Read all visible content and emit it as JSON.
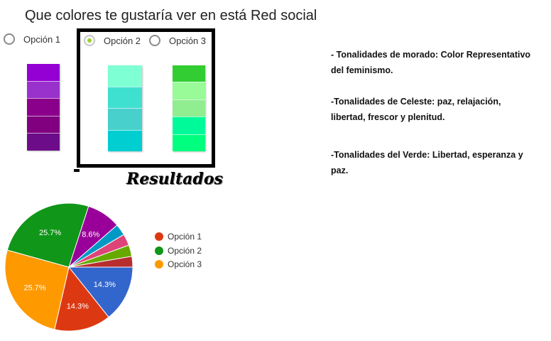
{
  "question": "Que colores te gustaría ver en está Red social",
  "options": [
    {
      "label": "Opción 1",
      "checked": false
    },
    {
      "label": "Opción 2",
      "checked": true
    },
    {
      "label": "Opción 3",
      "checked": false
    }
  ],
  "swatches": [
    {
      "name": "morado",
      "colors": [
        "#9400d3",
        "#9932cc",
        "#8b008b",
        "#800080",
        "#6c0c89"
      ]
    },
    {
      "name": "celeste",
      "colors": [
        "#7fffd4",
        "#40e0d0",
        "#48d1cc",
        "#00ced1"
      ]
    },
    {
      "name": "verde",
      "colors": [
        "#32cd32",
        "#98fb98",
        "#90ee90",
        "#00fa9a",
        "#00ff7f"
      ]
    }
  ],
  "results_title": "Resultados",
  "descriptions": [
    {
      "line1": "- Tonalidades de morado: Color Representativo",
      "line2": "del feminismo."
    },
    {
      "line1": "-Tonalidades de Celeste: paz, relajación,",
      "line2": "libertad, frescor y plenitud."
    },
    {
      "line1": "-Tonalidades del Verde: Libertad, esperanza y",
      "line2": "paz."
    }
  ],
  "chart_data": {
    "type": "pie",
    "slices": [
      {
        "label": "",
        "value": 14.3,
        "color": "#3366cc",
        "display": "14.3%"
      },
      {
        "label": "",
        "value": 14.3,
        "color": "#dc3912",
        "display": "14.3%"
      },
      {
        "label": "",
        "value": 25.7,
        "color": "#ff9900",
        "display": "25.7%"
      },
      {
        "label": "",
        "value": 25.7,
        "color": "#109618",
        "display": "25.7%"
      },
      {
        "label": "",
        "value": 8.6,
        "color": "#990099",
        "display": "8.6%"
      },
      {
        "label": "",
        "value": 2.9,
        "color": "#0099c6",
        "display": ""
      },
      {
        "label": "",
        "value": 2.9,
        "color": "#dd4477",
        "display": ""
      },
      {
        "label": "",
        "value": 2.9,
        "color": "#66aa00",
        "display": ""
      },
      {
        "label": "",
        "value": 2.7,
        "color": "#b82e2e",
        "display": ""
      }
    ],
    "legend": [
      {
        "label": "Opción 1",
        "color": "#dc3912"
      },
      {
        "label": "Opción 2",
        "color": "#109618"
      },
      {
        "label": "Opción 3",
        "color": "#ff9900"
      }
    ],
    "legend_position": "right"
  }
}
